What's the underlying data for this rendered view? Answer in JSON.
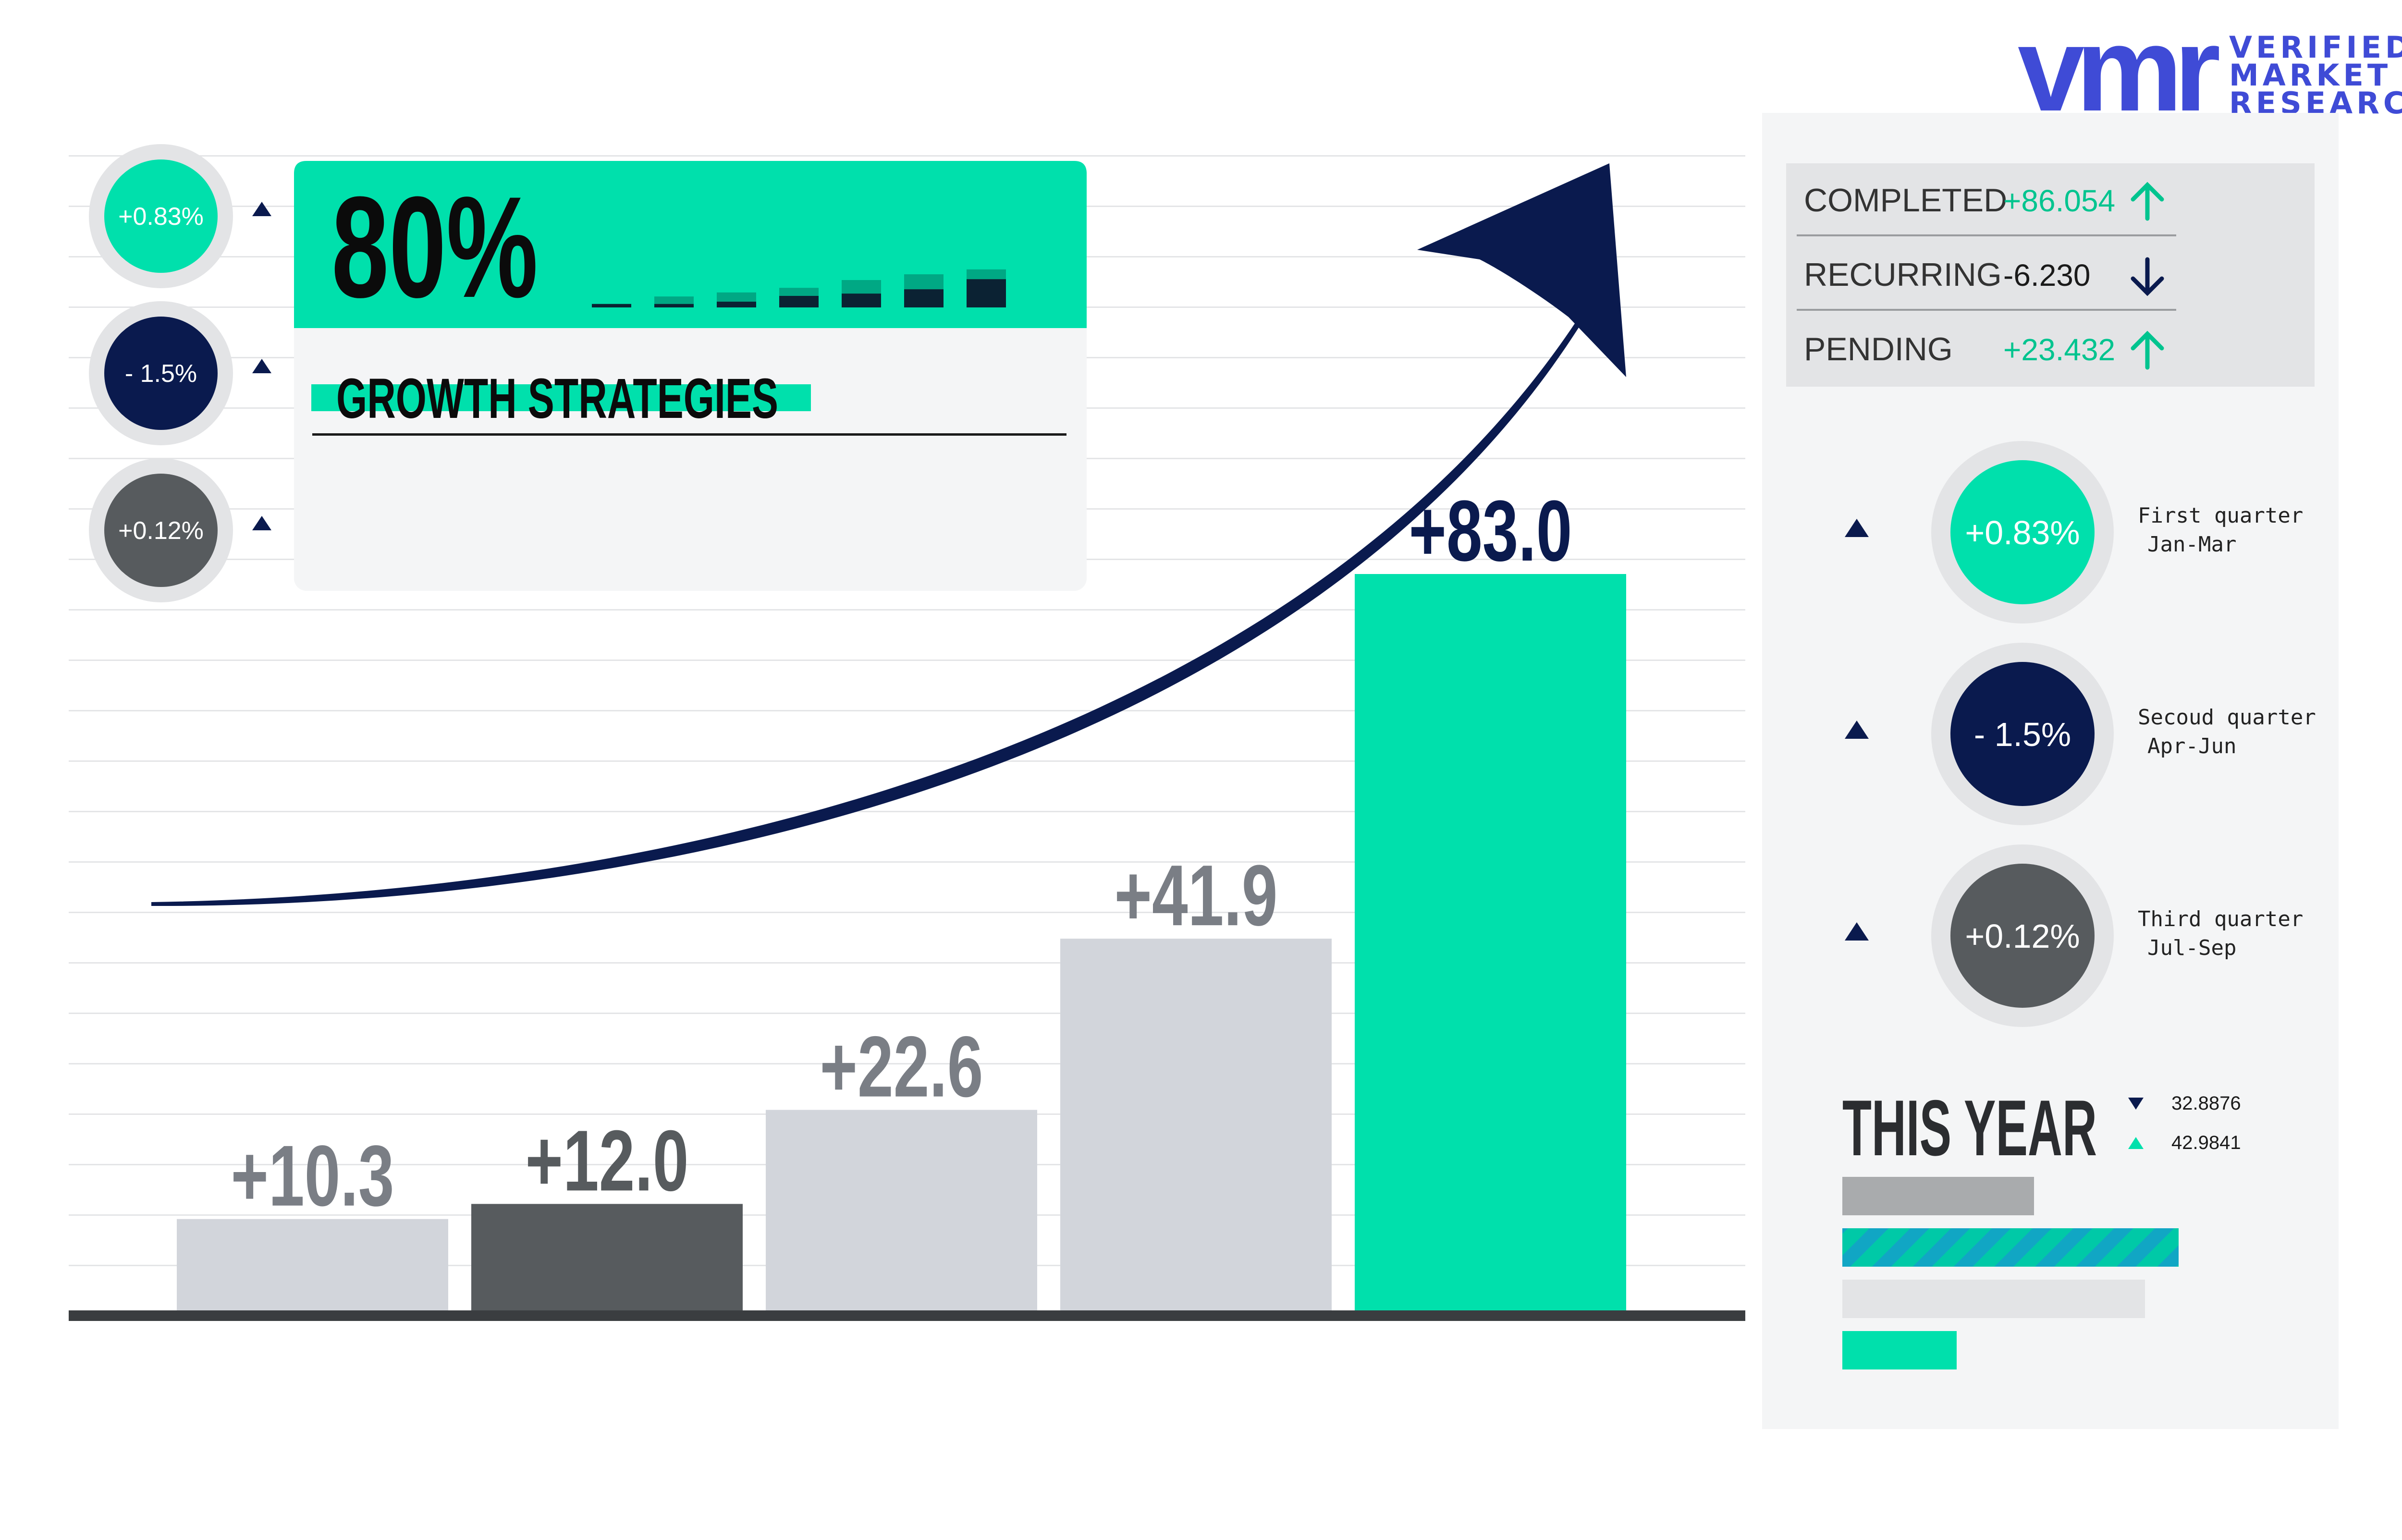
{
  "logo": {
    "mark": "vmr",
    "line1": "VERIFIED",
    "line2": "MARKET",
    "line3": "RESEARCH",
    "color": "#3f4bd6"
  },
  "colors": {
    "teal": "#00e0ac",
    "navy": "#0a1a4e",
    "dark_gray": "#575b5e",
    "light_gray": "#d2d5db",
    "panel": "#f4f5f6",
    "status_panel": "#e3e4e6"
  },
  "left_badges": [
    {
      "value": "+0.83%",
      "color": "#00e0ac",
      "icon": "triangle-up-icon"
    },
    {
      "value": "- 1.5%",
      "color": "#0a1a4e",
      "icon": "triangle-up-icon"
    },
    {
      "value": "+0.12%",
      "color": "#575b5e",
      "icon": "triangle-up-icon"
    }
  ],
  "growth_card": {
    "percent": "80%",
    "label": "GROWTH  STRATEGIES",
    "mini_bars": [
      {
        "total": 0.12,
        "dark": 0.12
      },
      {
        "total": 0.38,
        "dark": 0.12
      },
      {
        "total": 0.52,
        "dark": 0.2
      },
      {
        "total": 0.68,
        "dark": 0.4
      },
      {
        "total": 0.95,
        "dark": 0.48
      },
      {
        "total": 1.15,
        "dark": 0.63
      },
      {
        "total": 1.32,
        "dark": 0.98
      }
    ]
  },
  "status": [
    {
      "label": "COMPLETED",
      "value": "+86.054",
      "direction": "up",
      "icon": "arrow-up-icon"
    },
    {
      "label": "RECURRING",
      "value": "-6.230",
      "direction": "down",
      "icon": "arrow-down-icon"
    },
    {
      "label": "PENDING",
      "value": "+23.432",
      "direction": "up",
      "icon": "arrow-up-icon"
    }
  ],
  "quarters": [
    {
      "value": "+0.83%",
      "name": "First quarter",
      "months": "Jan-Mar",
      "color": "#00e0ac"
    },
    {
      "value": "- 1.5%",
      "name": "Secoud quarter",
      "months": "Apr-Jun",
      "color": "#0a1a4e"
    },
    {
      "value": "+0.12%",
      "name": "Third quarter",
      "months": "Jul-Sep",
      "color": "#575b5e"
    }
  ],
  "this_year": {
    "title": "THIS YEAR",
    "down_value": "32.8876",
    "up_value": "42.9841",
    "bars": [
      {
        "level": 0.57,
        "style": "gray"
      },
      {
        "level": 1.0,
        "style": "striped"
      },
      {
        "level": 0.9,
        "style": "light"
      },
      {
        "level": 0.34,
        "style": "teal"
      }
    ]
  },
  "chart_data": {
    "type": "bar",
    "categories": [
      "",
      "",
      "",
      "",
      ""
    ],
    "values": [
      10.3,
      12.0,
      22.6,
      41.9,
      83.0
    ],
    "data_labels": [
      "+10.3",
      "+12.0",
      "+22.6",
      "+41.9",
      "+83.0"
    ],
    "bar_colors": [
      "#d2d5db",
      "#575b5e",
      "#d2d5db",
      "#d2d5db",
      "#00e0ac"
    ],
    "label_colors": [
      "#7a7e85",
      "#575b5e",
      "#7a7e85",
      "#7a7e85",
      "#0a1a4e"
    ],
    "ylim": [
      0,
      100
    ],
    "grid": true,
    "trend_arrow": true
  }
}
